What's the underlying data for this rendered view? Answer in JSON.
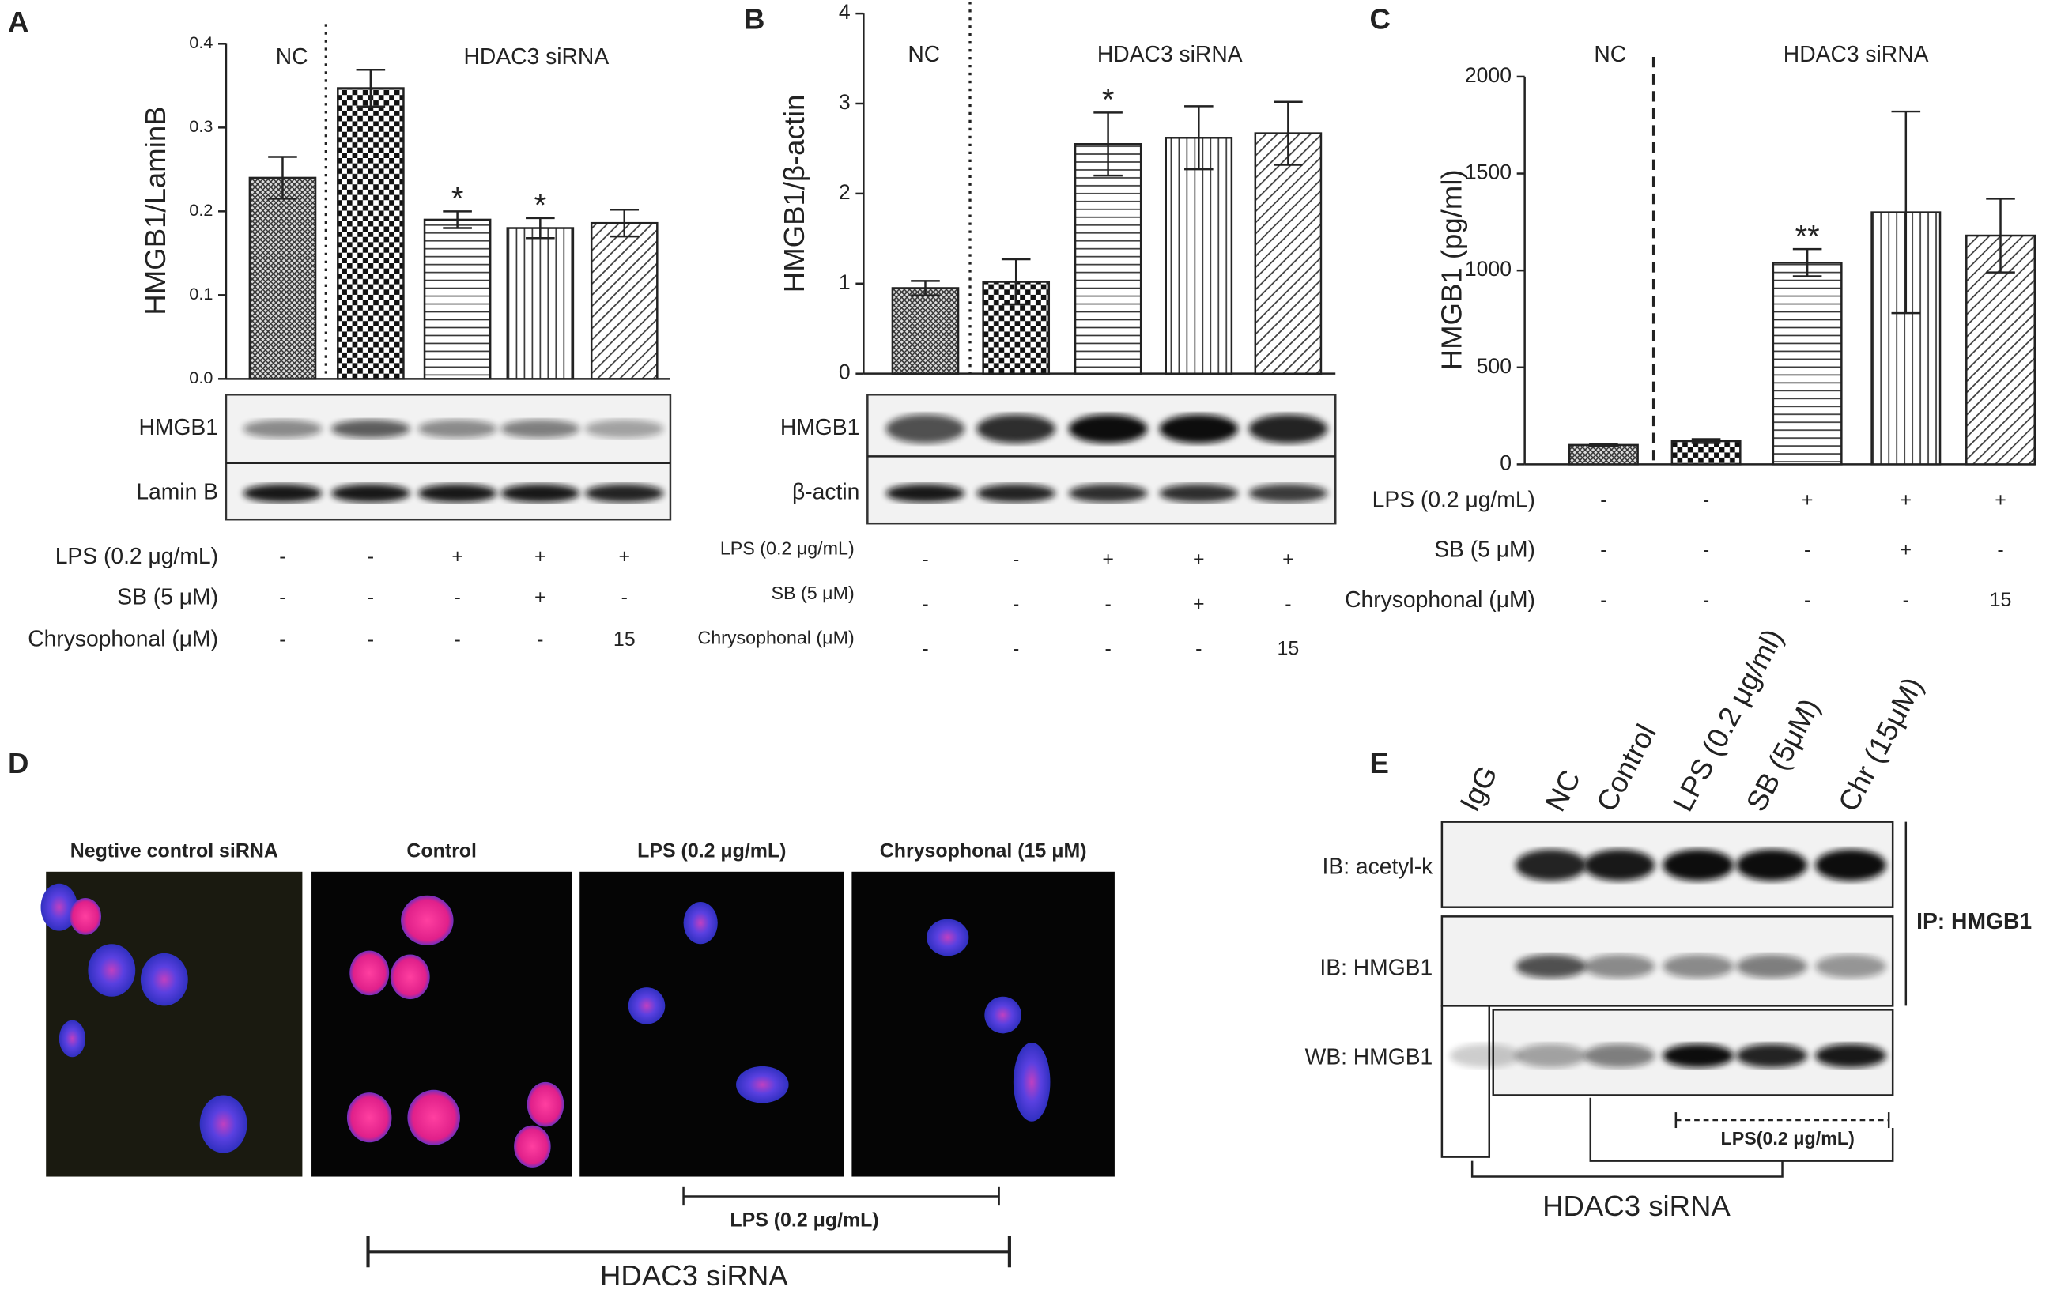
{
  "panel_labels": [
    "A",
    "B",
    "C",
    "D",
    "E"
  ],
  "chart_data": [
    {
      "type": "bar",
      "ylabel": "HMGB1/LaminB",
      "ylim": [
        0,
        0.4
      ],
      "yticks": [
        {
          "value": 0,
          "label": "0.0"
        },
        0.1,
        0.2,
        0.3,
        0.4
      ],
      "values": [
        0.24,
        0.347,
        0.19,
        0.18,
        0.186
      ],
      "errors": [
        0.025,
        0.022,
        0.01,
        0.012,
        0.016
      ],
      "value_annotations": [
        null,
        null,
        "*",
        "*",
        null
      ],
      "group_labels": [
        "NC",
        "HDAC3 siRNA"
      ],
      "blot_labels": [
        "HMGB1",
        "Lamin B"
      ],
      "treatments": [
        {
          "label": "LPS (0.2 μg/mL)",
          "values": [
            "-",
            "-",
            "+",
            "+",
            "+"
          ]
        },
        {
          "label": "SB (5 μM)",
          "values": [
            "-",
            "-",
            "-",
            "+",
            "-"
          ]
        },
        {
          "label": "Chrysophonal (μM)",
          "values": [
            "-",
            "-",
            "-",
            "-",
            "15"
          ]
        }
      ]
    },
    {
      "type": "bar",
      "ylabel": "HMGB1/β-actin",
      "ylim": [
        0,
        4
      ],
      "yticks": [
        0,
        1,
        2,
        3,
        4
      ],
      "values": [
        0.95,
        1.02,
        2.55,
        2.62,
        2.67
      ],
      "errors": [
        0.08,
        0.25,
        0.35,
        0.35,
        0.35
      ],
      "value_annotations": [
        null,
        null,
        "*",
        null,
        null
      ],
      "group_labels": [
        "NC",
        "HDAC3 siRNA"
      ],
      "blot_labels": [
        "HMGB1",
        "β-actin"
      ],
      "treatments": [
        {
          "label": "LPS (0.2 μg/mL)",
          "values": [
            "-",
            "-",
            "+",
            "+",
            "+"
          ]
        },
        {
          "label": "SB (5 μM)",
          "values": [
            "-",
            "-",
            "-",
            "+",
            "-"
          ]
        },
        {
          "label": "Chrysophonal (μM)",
          "values": [
            "-",
            "-",
            "-",
            "-",
            "15"
          ]
        }
      ]
    },
    {
      "type": "bar",
      "ylabel": "HMGB1 (pg/ml)",
      "ylim": [
        0,
        2000
      ],
      "yticks": [
        0,
        500,
        1000,
        1500,
        2000
      ],
      "values": [
        100,
        120,
        1040,
        1300,
        1180
      ],
      "errors": [
        5,
        10,
        70,
        520,
        190
      ],
      "value_annotations": [
        null,
        null,
        "**",
        null,
        null
      ],
      "group_labels": [
        "NC",
        "HDAC3 siRNA"
      ],
      "treatments": [
        {
          "label": "LPS (0.2 μg/mL)",
          "values": [
            "-",
            "-",
            "+",
            "+",
            "+"
          ]
        },
        {
          "label": "SB (5 μM)",
          "values": [
            "-",
            "-",
            "-",
            "+",
            "-"
          ]
        },
        {
          "label": "Chrysophonal (μM)",
          "values": [
            "-",
            "-",
            "-",
            "-",
            "15"
          ]
        }
      ]
    }
  ],
  "panel_d": {
    "image_titles": [
      "Negtive control siRNA",
      "Control",
      "LPS  (0.2 μg/mL)",
      "Chrysophonal (15 μM)"
    ],
    "inner_bracket": "LPS  (0.2 μg/mL)",
    "outer_bracket": "HDAC3 siRNA"
  },
  "panel_e": {
    "lanes": [
      "IgG",
      "NC",
      "Control",
      "LPS (0.2 μg/ml)",
      "SB (5μM)",
      "Chr (15μM)"
    ],
    "rows": [
      "IB: acetyl-k",
      "IB: HMGB1",
      "WB: HMGB1"
    ],
    "ip_label": "IP: HMGB1",
    "lps_bracket": "LPS(0.2 μg/mL)",
    "sirna_bracket": "HDAC3 siRNA"
  }
}
